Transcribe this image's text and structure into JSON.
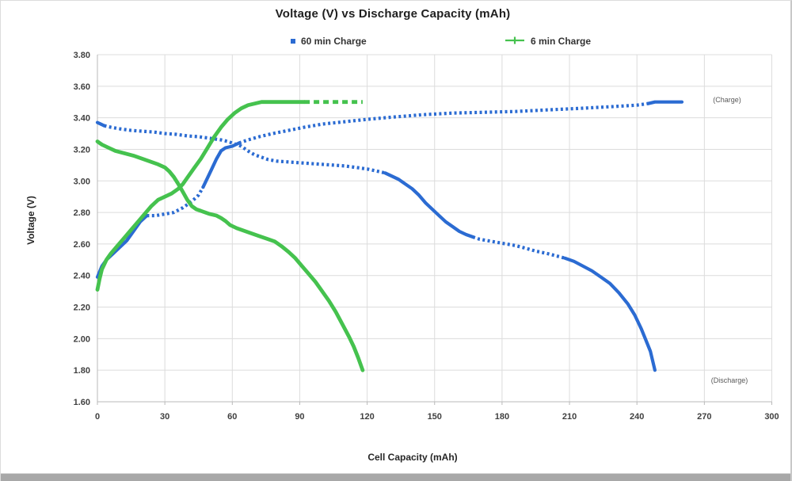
{
  "chart_data": {
    "type": "scatter",
    "title": "Voltage (V) vs Discharge Capacity (mAh)",
    "xlabel": "Cell Capacity (mAh)",
    "ylabel": "Voltage (V)",
    "xlim": [
      0,
      300
    ],
    "ylim": [
      1.6,
      3.8
    ],
    "x_ticks": [
      "0",
      "30",
      "60",
      "90",
      "120",
      "150",
      "180",
      "210",
      "240",
      "270",
      "300"
    ],
    "y_ticks": [
      "3.80",
      "3.60",
      "3.40",
      "3.20",
      "3.00",
      "2.80",
      "2.60",
      "2.40",
      "2.20",
      "2.00",
      "1.80",
      "1.60"
    ],
    "grid": true,
    "legend_position": "top",
    "colors": {
      "blue": "#2b6bd2",
      "green": "#45c24e",
      "gridline": "#dcdcdc",
      "axis_line": "#b9b9b9",
      "tick_text": "#404040"
    },
    "legend": [
      {
        "label": "60 min Charge",
        "marker": "square",
        "color": "#2b6bd2"
      },
      {
        "label": "6 min Charge",
        "marker": "line-plus",
        "color": "#45c24e"
      }
    ],
    "annotations": [
      {
        "text": "(Charge)",
        "x": 280,
        "y": 3.51
      },
      {
        "text": "(Discharge)",
        "x": 281,
        "y": 1.73
      }
    ],
    "series": [
      {
        "name": "60 min Charge",
        "branch": "charge",
        "color": "#2b6bd2",
        "width": 4.2,
        "dotted_ranges": [
          [
            22,
            46
          ],
          [
            62,
            245
          ]
        ],
        "points": [
          [
            0,
            2.39
          ],
          [
            2,
            2.46
          ],
          [
            4,
            2.5
          ],
          [
            7,
            2.54
          ],
          [
            10,
            2.58
          ],
          [
            13,
            2.62
          ],
          [
            16,
            2.68
          ],
          [
            19,
            2.74
          ],
          [
            22,
            2.78
          ],
          [
            26,
            2.78
          ],
          [
            30,
            2.79
          ],
          [
            34,
            2.8
          ],
          [
            38,
            2.83
          ],
          [
            42,
            2.87
          ],
          [
            45,
            2.91
          ],
          [
            47,
            2.96
          ],
          [
            49,
            3.02
          ],
          [
            51,
            3.08
          ],
          [
            53,
            3.14
          ],
          [
            55,
            3.19
          ],
          [
            57,
            3.21
          ],
          [
            60,
            3.22
          ],
          [
            63,
            3.24
          ],
          [
            67,
            3.26
          ],
          [
            72,
            3.28
          ],
          [
            78,
            3.3
          ],
          [
            85,
            3.32
          ],
          [
            92,
            3.34
          ],
          [
            100,
            3.36
          ],
          [
            110,
            3.375
          ],
          [
            120,
            3.39
          ],
          [
            132,
            3.405
          ],
          [
            145,
            3.42
          ],
          [
            158,
            3.43
          ],
          [
            172,
            3.435
          ],
          [
            186,
            3.44
          ],
          [
            200,
            3.45
          ],
          [
            215,
            3.46
          ],
          [
            228,
            3.47
          ],
          [
            240,
            3.48
          ],
          [
            245,
            3.49
          ],
          [
            248,
            3.5
          ],
          [
            260,
            3.5
          ]
        ]
      },
      {
        "name": "60 min Charge",
        "branch": "discharge",
        "color": "#2b6bd2",
        "width": 4.2,
        "dotted_ranges": [
          [
            4,
            128
          ],
          [
            168,
            208
          ]
        ],
        "points": [
          [
            0,
            3.37
          ],
          [
            3,
            3.35
          ],
          [
            6,
            3.34
          ],
          [
            10,
            3.33
          ],
          [
            15,
            3.32
          ],
          [
            20,
            3.315
          ],
          [
            25,
            3.31
          ],
          [
            30,
            3.3
          ],
          [
            35,
            3.295
          ],
          [
            40,
            3.285
          ],
          [
            45,
            3.28
          ],
          [
            50,
            3.27
          ],
          [
            55,
            3.26
          ],
          [
            58,
            3.25
          ],
          [
            61,
            3.235
          ],
          [
            64,
            3.22
          ],
          [
            66,
            3.2
          ],
          [
            68,
            3.18
          ],
          [
            70,
            3.165
          ],
          [
            73,
            3.15
          ],
          [
            76,
            3.135
          ],
          [
            80,
            3.125
          ],
          [
            85,
            3.12
          ],
          [
            90,
            3.115
          ],
          [
            95,
            3.11
          ],
          [
            100,
            3.105
          ],
          [
            105,
            3.1
          ],
          [
            110,
            3.095
          ],
          [
            115,
            3.085
          ],
          [
            120,
            3.075
          ],
          [
            125,
            3.06
          ],
          [
            128,
            3.05
          ],
          [
            131,
            3.03
          ],
          [
            134,
            3.01
          ],
          [
            137,
            2.98
          ],
          [
            140,
            2.95
          ],
          [
            143,
            2.91
          ],
          [
            146,
            2.86
          ],
          [
            149,
            2.82
          ],
          [
            152,
            2.78
          ],
          [
            155,
            2.74
          ],
          [
            158,
            2.71
          ],
          [
            161,
            2.68
          ],
          [
            164,
            2.66
          ],
          [
            167,
            2.645
          ],
          [
            170,
            2.63
          ],
          [
            174,
            2.62
          ],
          [
            178,
            2.61
          ],
          [
            182,
            2.6
          ],
          [
            186,
            2.59
          ],
          [
            190,
            2.575
          ],
          [
            195,
            2.555
          ],
          [
            200,
            2.54
          ],
          [
            204,
            2.525
          ],
          [
            208,
            2.51
          ],
          [
            212,
            2.49
          ],
          [
            216,
            2.46
          ],
          [
            220,
            2.43
          ],
          [
            224,
            2.39
          ],
          [
            228,
            2.35
          ],
          [
            232,
            2.29
          ],
          [
            236,
            2.22
          ],
          [
            239,
            2.15
          ],
          [
            242,
            2.06
          ],
          [
            244,
            1.99
          ],
          [
            246,
            1.92
          ],
          [
            248,
            1.8
          ]
        ]
      },
      {
        "name": "6 min Charge",
        "branch": "charge",
        "color": "#45c24e",
        "width": 4.8,
        "dashed_ranges": [
          [
            92,
            118
          ]
        ],
        "points": [
          [
            0,
            2.31
          ],
          [
            1,
            2.38
          ],
          [
            2,
            2.44
          ],
          [
            4,
            2.5
          ],
          [
            6,
            2.54
          ],
          [
            9,
            2.59
          ],
          [
            12,
            2.64
          ],
          [
            15,
            2.69
          ],
          [
            18,
            2.74
          ],
          [
            21,
            2.79
          ],
          [
            24,
            2.84
          ],
          [
            27,
            2.88
          ],
          [
            30,
            2.9
          ],
          [
            33,
            2.92
          ],
          [
            36,
            2.95
          ],
          [
            38,
            2.98
          ],
          [
            40,
            3.02
          ],
          [
            43,
            3.08
          ],
          [
            46,
            3.14
          ],
          [
            49,
            3.21
          ],
          [
            52,
            3.28
          ],
          [
            55,
            3.34
          ],
          [
            58,
            3.39
          ],
          [
            61,
            3.43
          ],
          [
            64,
            3.46
          ],
          [
            67,
            3.48
          ],
          [
            70,
            3.49
          ],
          [
            73,
            3.5
          ],
          [
            80,
            3.5
          ],
          [
            92,
            3.5
          ],
          [
            105,
            3.5
          ],
          [
            118,
            3.5
          ]
        ]
      },
      {
        "name": "6 min Charge",
        "branch": "discharge",
        "color": "#45c24e",
        "width": 4.8,
        "points": [
          [
            0,
            3.25
          ],
          [
            2,
            3.23
          ],
          [
            5,
            3.21
          ],
          [
            8,
            3.19
          ],
          [
            12,
            3.175
          ],
          [
            16,
            3.16
          ],
          [
            20,
            3.14
          ],
          [
            24,
            3.12
          ],
          [
            27,
            3.105
          ],
          [
            30,
            3.085
          ],
          [
            32,
            3.06
          ],
          [
            34,
            3.025
          ],
          [
            36,
            2.98
          ],
          [
            38,
            2.93
          ],
          [
            40,
            2.88
          ],
          [
            42,
            2.84
          ],
          [
            44,
            2.82
          ],
          [
            47,
            2.805
          ],
          [
            50,
            2.79
          ],
          [
            53,
            2.78
          ],
          [
            55,
            2.765
          ],
          [
            57,
            2.745
          ],
          [
            59,
            2.72
          ],
          [
            62,
            2.7
          ],
          [
            65,
            2.685
          ],
          [
            68,
            2.67
          ],
          [
            72,
            2.65
          ],
          [
            76,
            2.63
          ],
          [
            79,
            2.615
          ],
          [
            82,
            2.585
          ],
          [
            85,
            2.55
          ],
          [
            88,
            2.51
          ],
          [
            91,
            2.46
          ],
          [
            94,
            2.41
          ],
          [
            97,
            2.36
          ],
          [
            100,
            2.3
          ],
          [
            103,
            2.24
          ],
          [
            106,
            2.17
          ],
          [
            109,
            2.09
          ],
          [
            112,
            2.01
          ],
          [
            114,
            1.95
          ],
          [
            116,
            1.88
          ],
          [
            118,
            1.8
          ]
        ]
      }
    ]
  }
}
